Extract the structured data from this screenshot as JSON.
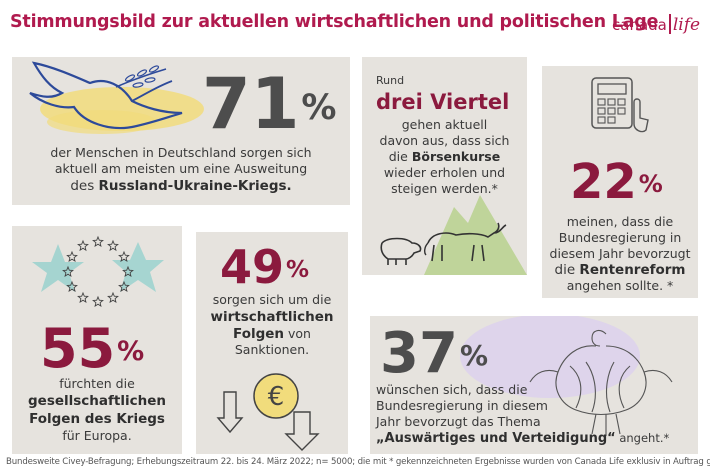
{
  "header": {
    "title": "Stimmungsbild zur aktuellen wirtschaftlichen und politischen Lage",
    "brand_1": "canada",
    "brand_2": "life"
  },
  "p1": {
    "number": "71",
    "pct": "%",
    "line1": "der Menschen in Deutschland sorgen sich",
    "line2": "aktuell am meisten um eine Ausweitung",
    "line3_pre": "des ",
    "line3_bold": "Russland-Ukraine-Kriegs."
  },
  "p2": {
    "intro": "Rund",
    "headline": "drei Viertel",
    "line1": "gehen aktuell",
    "line2": "davon aus, dass sich",
    "line3_pre": "die ",
    "line3_bold": "Börsenkurse",
    "line4": "wieder erholen und",
    "line5": "steigen werden.*"
  },
  "p3": {
    "number": "22",
    "pct": "%",
    "line1": "meinen, dass die",
    "line2": "Bundesregierung in",
    "line3": "diesem Jahr bevorzugt",
    "line4_pre": "die ",
    "line4_bold": "Rentenreform",
    "line5": "angehen sollte. *"
  },
  "p4": {
    "number": "55",
    "pct": "%",
    "line1": "fürchten die",
    "line2_bold": "gesellschaftlichen",
    "line3_bold": "Folgen des Kriegs",
    "line4": "für Europa."
  },
  "p5": {
    "number": "49",
    "pct": "%",
    "line1": "sorgen sich um die",
    "line2_bold": "wirtschaftlichen",
    "line3_bold": "Folgen",
    "line3_post": " von",
    "line4": "Sanktionen."
  },
  "p6": {
    "number": "37",
    "pct": "%",
    "line1": "wünschen sich, dass die",
    "line2": "Bundesregierung in diesem",
    "line3": "Jahr bevorzugt das Thema",
    "line4_bold": "„Auswärtiges und Verteidigung“",
    "line4_post": " angeht.*"
  },
  "footer": "Bundesweite Civey-Befragung; Erhebungszeitraum 22. bis 24. März 2022; n= 5000; die mit * gekennzeichneten Ergebnisse wurden von Canada Life exklusiv in Auftrag gegeben",
  "colors": {
    "accent": "#b01a4e",
    "panel": "#e6e3de",
    "yellow": "#f1dc7c",
    "teal": "#9fd3cf",
    "green": "#bfd49a",
    "purple": "#ddd2ec"
  },
  "icons": [
    "dove-icon",
    "olive-branch-icon",
    "calculator-icon",
    "pointing-hand-icon",
    "bull-icon",
    "bear-icon",
    "eu-stars-icon",
    "euro-coin-icon",
    "down-arrow-icon",
    "federal-eagle-icon"
  ]
}
